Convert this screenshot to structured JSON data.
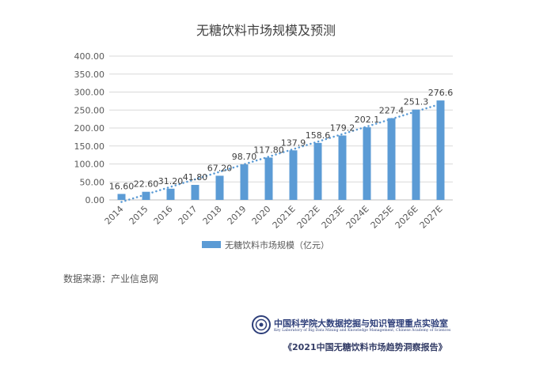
{
  "chart_data": {
    "type": "bar",
    "title": "无糖饮料市场规模及预测",
    "categories": [
      "2014",
      "2015",
      "2016",
      "2017",
      "2018",
      "2019",
      "2020",
      "2021E",
      "2022E",
      "2023E",
      "2024E",
      "2025E",
      "2026E",
      "2027E"
    ],
    "series": [
      {
        "name": "无糖饮料市场规模（亿元）",
        "values": [
          16.6,
          22.6,
          31.2,
          41.8,
          67.2,
          98.7,
          117.8,
          137.9,
          158.6,
          179.2,
          202.1,
          227.4,
          251.3,
          276.6
        ],
        "labels": [
          "16.60",
          "22.60",
          "31.20",
          "41.80",
          "67.20",
          "98.70",
          "117.80",
          "137.9",
          "158.6",
          "179.2",
          "202.1",
          "227.4",
          "251.3",
          "276.6"
        ],
        "color": "#5b9bd5"
      }
    ],
    "trendline": {
      "type": "linear",
      "style": "dotted",
      "color": "#5b9bd5"
    },
    "ylim": [
      0,
      400
    ],
    "yticks": [
      "0.00",
      "50.00",
      "100.00",
      "150.00",
      "200.00",
      "250.00",
      "300.00",
      "350.00",
      "400.00"
    ],
    "grid": true,
    "legend_position": "bottom"
  },
  "source_text": "数据来源：产业信息网",
  "lab_name_cn": "中国科学院大数据挖掘与知识管理重点实验室",
  "lab_name_en": "Key Laboratory of Big Data Mining and Knowledge Management, Chinese Academy of Sciences",
  "report_title": "《2021中国无糖饮料市场趋势洞察报告》"
}
